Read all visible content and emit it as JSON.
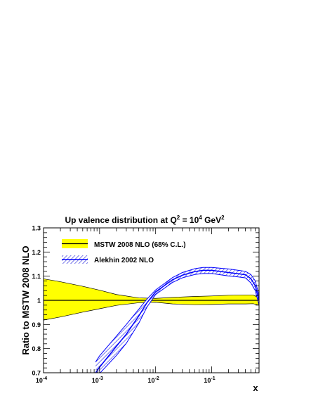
{
  "chart_data": {
    "type": "line",
    "title": "Up valence distribution at Q² = 10⁴ GeV²",
    "title_parts": {
      "prefix": "Up valence distribution at Q",
      "sup1": "2",
      "mid": " = 10",
      "sup2": "4",
      "suffix": " GeV",
      "sup3": "2"
    },
    "xlabel": "x",
    "ylabel": "Ratio to MSTW 2008 NLO",
    "x_scale": "log",
    "xlim": [
      0.0001,
      0.7
    ],
    "ylim": [
      0.7,
      1.3
    ],
    "x_ticks": [
      {
        "value": 0.0001,
        "base": "10",
        "exp": "-4"
      },
      {
        "value": 0.001,
        "base": "10",
        "exp": "-3"
      },
      {
        "value": 0.01,
        "base": "10",
        "exp": "-2"
      },
      {
        "value": 0.1,
        "base": "10",
        "exp": "-1"
      }
    ],
    "y_ticks": [
      {
        "value": 0.7,
        "label": "0.7"
      },
      {
        "value": 0.8,
        "label": "0.8"
      },
      {
        "value": 0.9,
        "label": "0.9"
      },
      {
        "value": 1.0,
        "label": "1"
      },
      {
        "value": 1.1,
        "label": "1.1"
      },
      {
        "value": 1.2,
        "label": "1.2"
      },
      {
        "value": 1.3,
        "label": "1.3"
      }
    ],
    "legend_position": "top-left",
    "series": [
      {
        "name": "MSTW 2008 NLO (68% C.L.)",
        "style": "filled-band",
        "fill_color": "#ffff00",
        "line_color": "#000000",
        "x": [
          0.0001,
          0.0002,
          0.0005,
          0.001,
          0.002,
          0.005,
          0.01,
          0.02,
          0.05,
          0.1,
          0.2,
          0.4,
          0.55,
          0.7
        ],
        "central": [
          1,
          1,
          1,
          1,
          1,
          1,
          1,
          1,
          1,
          1,
          1,
          1,
          1,
          1
        ],
        "upper": [
          1.089,
          1.077,
          1.058,
          1.042,
          1.024,
          1.01,
          1.008,
          1.012,
          1.016,
          1.018,
          1.021,
          1.022,
          1.022,
          1.01
        ],
        "lower": [
          0.918,
          0.931,
          0.951,
          0.965,
          0.979,
          0.99,
          0.992,
          0.985,
          0.982,
          0.983,
          0.985,
          0.985,
          0.986,
          0.98
        ]
      },
      {
        "name": "Alekhin 2002 NLO",
        "style": "hatched-band",
        "fill_color": "#0000ff",
        "line_color": "#0000ff",
        "x": [
          0.00085,
          0.001,
          0.002,
          0.003,
          0.005,
          0.007,
          0.01,
          0.02,
          0.03,
          0.05,
          0.07,
          0.1,
          0.2,
          0.3,
          0.4,
          0.5,
          0.6,
          0.7
        ],
        "central": [
          0.7,
          0.723,
          0.81,
          0.86,
          0.935,
          0.99,
          1.035,
          1.085,
          1.104,
          1.119,
          1.124,
          1.124,
          1.115,
          1.11,
          1.106,
          1.09,
          1.06,
          1.0
        ],
        "upper": [
          0.745,
          0.77,
          0.852,
          0.9,
          0.963,
          1.005,
          1.043,
          1.094,
          1.115,
          1.131,
          1.136,
          1.136,
          1.13,
          1.124,
          1.12,
          1.107,
          1.08,
          1.02
        ],
        "lower": [
          0.69,
          0.697,
          0.772,
          0.822,
          0.905,
          0.972,
          1.024,
          1.074,
          1.093,
          1.107,
          1.111,
          1.111,
          1.101,
          1.097,
          1.093,
          1.072,
          1.04,
          0.98
        ]
      }
    ]
  }
}
